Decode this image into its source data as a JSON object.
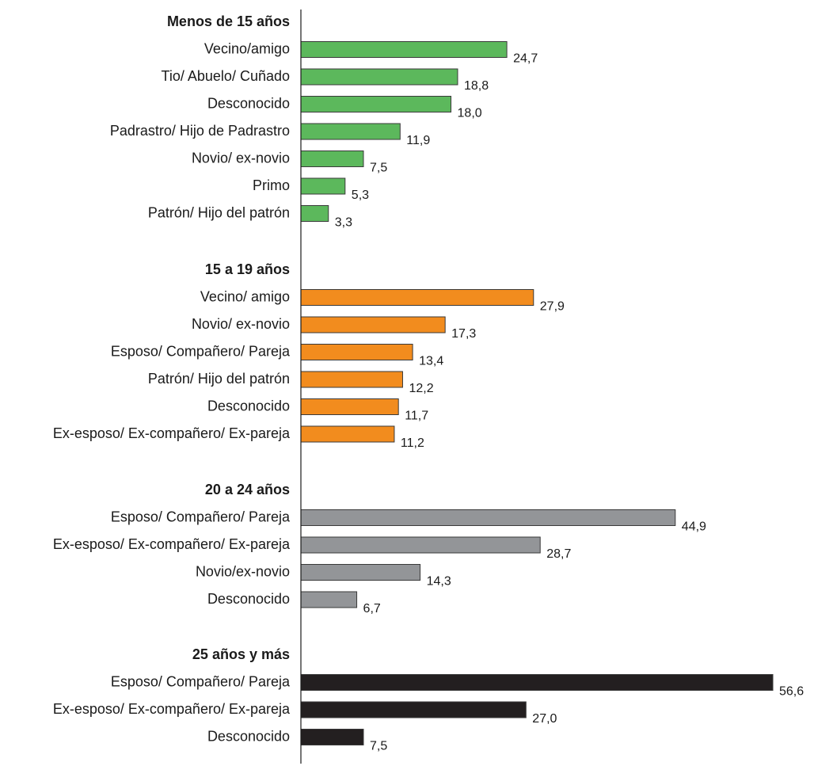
{
  "chart_data": {
    "type": "bar",
    "orientation": "horizontal",
    "xlim": [
      0,
      56.6
    ],
    "grid": false,
    "groups": [
      {
        "name": "Menos de 15 años",
        "color": "#5cb85c",
        "categories": [
          "Vecino/amigo",
          "Tio/ Abuelo/ Cuñado",
          "Desconocido",
          "Padrastro/ Hijo de Padrastro",
          "Novio/ ex-novio",
          "Primo",
          "Patrón/ Hijo del patrón"
        ],
        "values": [
          24.7,
          18.8,
          18.0,
          11.9,
          7.5,
          5.3,
          3.3
        ],
        "labels": [
          "24,7",
          "18,8",
          "18,0",
          "11,9",
          "7,5",
          "5,3",
          "3,3"
        ]
      },
      {
        "name": "15 a 19 años",
        "color": "#f28c1e",
        "categories": [
          "Vecino/ amigo",
          "Novio/ ex-novio",
          "Esposo/ Compañero/ Pareja",
          "Patrón/ Hijo del patrón",
          "Desconocido",
          "Ex-esposo/ Ex-compañero/ Ex-pareja"
        ],
        "values": [
          27.9,
          17.3,
          13.4,
          12.2,
          11.7,
          11.2
        ],
        "labels": [
          "27,9",
          "17,3",
          "13,4",
          "12,2",
          "11,7",
          "11,2"
        ]
      },
      {
        "name": "20 a 24 años",
        "color": "#939598",
        "categories": [
          "Esposo/ Compañero/ Pareja",
          "Ex-esposo/ Ex-compañero/ Ex-pareja",
          "Novio/ex-novio",
          "Desconocido"
        ],
        "values": [
          44.9,
          28.7,
          14.3,
          6.7
        ],
        "labels": [
          "44,9",
          "28,7",
          "14,3",
          "6,7"
        ]
      },
      {
        "name": "25 años y más",
        "color": "#231f20",
        "categories": [
          "Esposo/ Compañero/ Pareja",
          "Ex-esposo/ Ex-compañero/ Ex-pareja",
          "Desconocido"
        ],
        "values": [
          56.6,
          27.0,
          7.5
        ],
        "labels": [
          "56,6",
          "27,0",
          "7,5"
        ]
      }
    ]
  }
}
